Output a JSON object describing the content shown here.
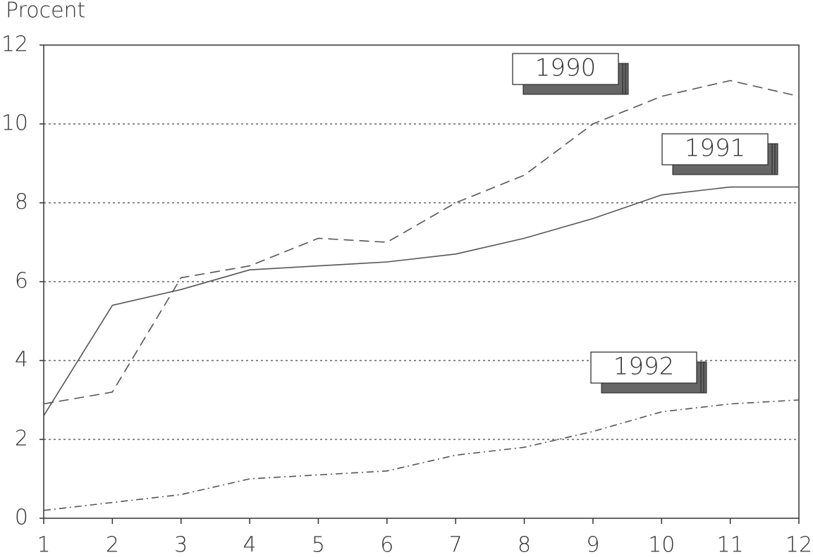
{
  "chart_data": {
    "type": "line",
    "y_label": "Procent",
    "x": [
      1,
      2,
      3,
      4,
      5,
      6,
      7,
      8,
      9,
      10,
      11,
      12
    ],
    "xlim": [
      1,
      12
    ],
    "xticks": [
      1,
      2,
      3,
      4,
      5,
      6,
      7,
      8,
      9,
      10,
      11,
      12
    ],
    "ylim": [
      0,
      12
    ],
    "yticks": [
      0,
      2,
      4,
      6,
      8,
      10,
      12
    ],
    "grid": true,
    "series": [
      {
        "name": "1990",
        "color": "#555555",
        "style": "dashed",
        "values": [
          2.9,
          3.2,
          6.1,
          6.4,
          7.1,
          7.0,
          8.0,
          8.7,
          10.0,
          10.7,
          11.1,
          10.7
        ]
      },
      {
        "name": "1991",
        "color": "#555555",
        "style": "solid",
        "values": [
          2.6,
          5.4,
          5.8,
          6.3,
          6.4,
          6.5,
          6.7,
          7.1,
          7.6,
          8.2,
          8.4,
          8.4
        ]
      },
      {
        "name": "1992",
        "color": "#555555",
        "style": "dashdot",
        "values": [
          0.2,
          0.4,
          0.6,
          1.0,
          1.1,
          1.2,
          1.6,
          1.8,
          2.2,
          2.7,
          2.9,
          3.0
        ]
      }
    ]
  }
}
